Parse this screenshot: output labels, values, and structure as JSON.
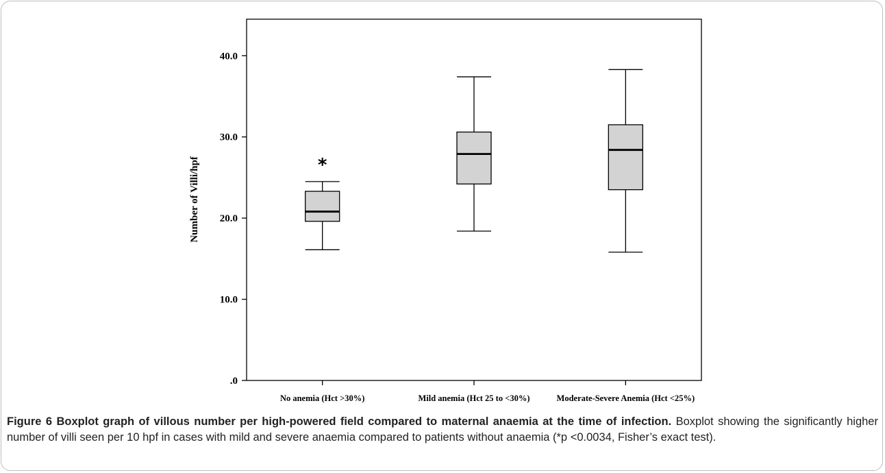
{
  "chart_data": {
    "type": "boxplot",
    "title": "",
    "xlabel": "",
    "ylabel": "Number of Villi/hpf",
    "ylim": [
      0,
      44.5
    ],
    "yticks": [
      {
        "value": 0,
        "label": ".0"
      },
      {
        "value": 10,
        "label": "10.0"
      },
      {
        "value": 20,
        "label": "20.0"
      },
      {
        "value": 30,
        "label": "30.0"
      },
      {
        "value": 40,
        "label": "40.0"
      }
    ],
    "categories": [
      "No anemia (Hct >30%)",
      "Mild anemia (Hct 25 to <30%)",
      "Moderate-Severe Anemia (Hct <25%)"
    ],
    "boxes": [
      {
        "whisker_low": 16.1,
        "q1": 19.6,
        "median": 20.8,
        "q3": 23.3,
        "whisker_high": 24.5
      },
      {
        "whisker_low": 18.4,
        "q1": 24.2,
        "median": 27.9,
        "q3": 30.6,
        "whisker_high": 37.4
      },
      {
        "whisker_low": 15.8,
        "q1": 23.5,
        "median": 28.4,
        "q3": 31.5,
        "whisker_high": 38.3
      }
    ],
    "annotations": [
      {
        "category_index": 0,
        "value": 27.0,
        "text": "*"
      }
    ],
    "box_fill": "#d3d3d3",
    "grid": false,
    "legend": "none"
  },
  "caption": {
    "label": "Figure 6 Boxplot graph of villous number per high-powered field compared to maternal anaemia at the time of infection.",
    "text": " Boxplot showing the significantly higher number of villi seen per 10 hpf in cases with mild and severe anaemia compared to patients without anaemia (*p <0.0034, Fisher’s exact test)."
  }
}
